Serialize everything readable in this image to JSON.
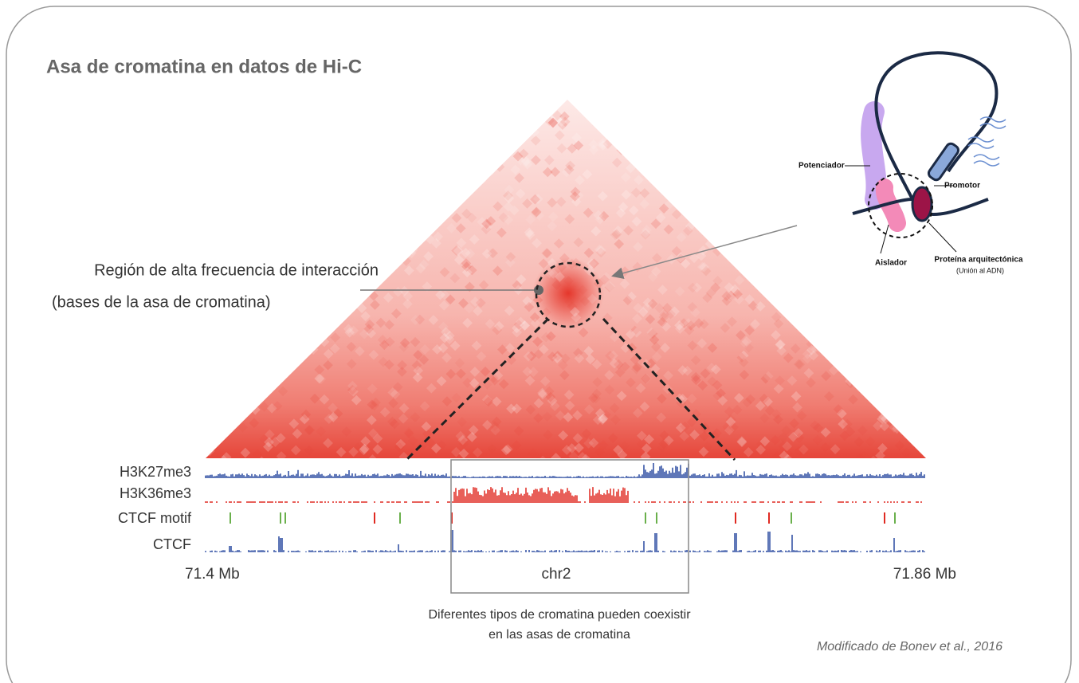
{
  "title": "Asa de cromatina en datos de Hi-C",
  "annotation": {
    "line1": "Región de alta frecuencia de interacción",
    "line2": "(bases de la asa de cromatina)"
  },
  "tracks": [
    "H3K27me3",
    "H3K36me3",
    "CTCF motif",
    "CTCF"
  ],
  "axis": {
    "start": "71.4 Mb",
    "chromosome": "chr2",
    "end": "71.86 Mb"
  },
  "caption": {
    "line1": "Diferentes tipos de cromatina pueden coexistir",
    "line2": "en las asas de cromatina"
  },
  "citation": "Modificado de Bonev et al., 2016",
  "diagram": {
    "enhancer": "Potenciador",
    "promoter": "Promotor",
    "insulator": "Aislador",
    "protein": "Proteína arquitectónica",
    "protein_note": "(Unión al ADN)"
  }
}
